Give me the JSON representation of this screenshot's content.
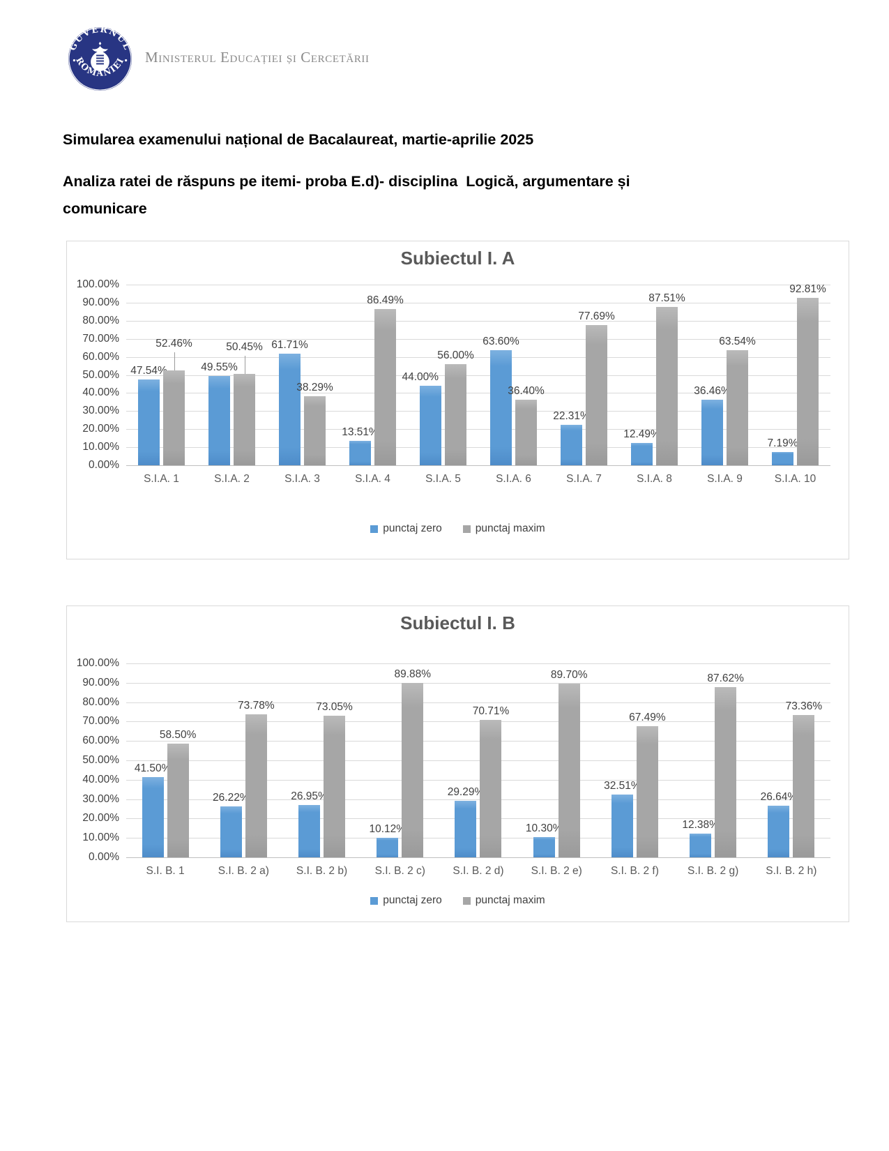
{
  "header": {
    "logo": {
      "text_top": "GUVERNUL",
      "text_bottom": "ROMÂNIEI"
    },
    "ministry": "Ministerul Educației și Cercetării"
  },
  "document": {
    "title": "Simularea examenului național de Bacalaureat, martie-aprilie 2025",
    "subtitle": "Analiza ratei de răspuns pe itemi- proba E.d)- disciplina  Logică, argumentare și comunicare"
  },
  "colors": {
    "punctaj_zero": "#5B9BD5",
    "punctaj_maxim": "#A6A6A6",
    "chart_title": "#595959",
    "gridline": "#D9D9D9",
    "logo_navy": "#283583"
  },
  "chart_data": [
    {
      "type": "bar",
      "title": "Subiectul I. A",
      "categories": [
        "S.I.A. 1",
        "S.I.A. 2",
        "S.I.A. 3",
        "S.I.A. 4",
        "S.I.A. 5",
        "S.I.A. 6",
        "S.I.A. 7",
        "S.I.A. 8",
        "S.I.A. 9",
        "S.I.A. 10"
      ],
      "series": [
        {
          "name": "punctaj zero",
          "color": "#5B9BD5",
          "values": [
            47.54,
            49.55,
            61.71,
            13.51,
            44.0,
            63.6,
            22.31,
            12.49,
            36.46,
            7.19
          ]
        },
        {
          "name": "punctaj maxim",
          "color": "#A6A6A6",
          "values": [
            52.46,
            50.45,
            38.29,
            86.49,
            56.0,
            36.4,
            77.69,
            87.51,
            63.54,
            92.81
          ]
        }
      ],
      "ylim": [
        0,
        100
      ],
      "yticks": [
        "100.00%",
        "90.00%",
        "80.00%",
        "70.00%",
        "60.00%",
        "50.00%",
        "40.00%",
        "30.00%",
        "20.00%",
        "10.00%",
        "0.00%"
      ],
      "grid": true,
      "legend_position": "bottom",
      "data_label_format": "percent-2dp"
    },
    {
      "type": "bar",
      "title": "Subiectul I. B",
      "categories": [
        "S.I. B. 1",
        "S.I. B. 2 a)",
        "S.I. B. 2 b)",
        "S.I. B. 2 c)",
        "S.I. B. 2 d)",
        "S.I. B. 2 e)",
        "S.I. B. 2 f)",
        "S.I. B. 2 g)",
        "S.I. B. 2 h)"
      ],
      "series": [
        {
          "name": "punctaj zero",
          "color": "#5B9BD5",
          "values": [
            41.5,
            26.22,
            26.95,
            10.12,
            29.29,
            10.3,
            32.51,
            12.38,
            26.64
          ]
        },
        {
          "name": "punctaj maxim",
          "color": "#A6A6A6",
          "values": [
            58.5,
            73.78,
            73.05,
            89.88,
            70.71,
            89.7,
            67.49,
            87.62,
            73.36
          ]
        }
      ],
      "ylim": [
        0,
        100
      ],
      "yticks": [
        "100.00%",
        "90.00%",
        "80.00%",
        "70.00%",
        "60.00%",
        "50.00%",
        "40.00%",
        "30.00%",
        "20.00%",
        "10.00%",
        "0.00%"
      ],
      "grid": true,
      "legend_position": "bottom",
      "data_label_format": "percent-2dp"
    }
  ]
}
